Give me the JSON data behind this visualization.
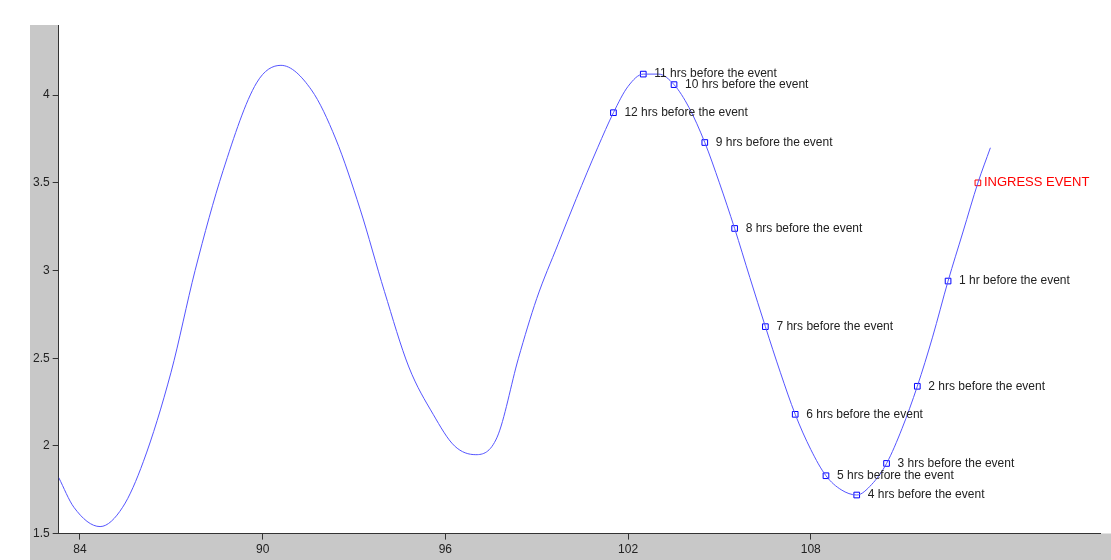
{
  "chart_data": {
    "type": "line",
    "xlim": [
      83.3,
      117.5
    ],
    "xticks": [
      84,
      90,
      96,
      102,
      108
    ],
    "ylim": [
      1.5,
      4.4
    ],
    "yticks": [
      1.5,
      2,
      2.5,
      3,
      3.5,
      4
    ],
    "grid": false,
    "legend": false,
    "line_style": "solid",
    "series": [
      {
        "marker": "none",
        "color": "#5555ff",
        "x": [
          83.3,
          83.8,
          84.66,
          85.4,
          86.08,
          86.99,
          87.78,
          88.7,
          89.8,
          90.6,
          91.6,
          92.4,
          93.2,
          94.0,
          94.8,
          95.6,
          96.3,
          97.0,
          97.7,
          98.4,
          99.0,
          99.7,
          100.3,
          101.0,
          101.52,
          102.0,
          102.5,
          103.0,
          103.51,
          104.0,
          104.52,
          105.0,
          105.5,
          106.0,
          106.51,
          107.0,
          107.49,
          108.0,
          108.5,
          109.0,
          109.51,
          110.0,
          110.49,
          111.0,
          111.5,
          112.0,
          112.51,
          113.0,
          113.49,
          113.9
        ],
        "values": [
          1.82,
          1.65,
          1.54,
          1.65,
          1.91,
          2.42,
          3.0,
          3.57,
          4.07,
          4.17,
          4.03,
          3.75,
          3.35,
          2.88,
          2.45,
          2.18,
          2.0,
          1.95,
          2.05,
          2.5,
          2.84,
          3.15,
          3.41,
          3.7,
          3.9,
          4.05,
          4.12,
          4.12,
          4.06,
          3.93,
          3.73,
          3.5,
          3.24,
          2.96,
          2.68,
          2.42,
          2.18,
          1.98,
          1.83,
          1.75,
          1.72,
          1.78,
          1.9,
          2.1,
          2.34,
          2.62,
          2.94,
          3.22,
          3.5,
          3.7
        ]
      },
      {
        "type": "scatter",
        "marker": "square",
        "color": "#0000ff",
        "x": [
          101.52,
          102.5,
          103.51,
          104.52,
          105.5,
          106.51,
          107.49,
          108.5,
          109.51,
          110.49,
          111.5,
          112.51
        ],
        "values": [
          3.9,
          4.12,
          4.06,
          3.73,
          3.24,
          2.68,
          2.18,
          1.83,
          1.72,
          1.9,
          2.34,
          2.94
        ]
      },
      {
        "type": "scatter",
        "marker": "square",
        "color": "#ff0000",
        "name": "INGRESS EVENT",
        "x": [
          113.49
        ],
        "values": [
          3.5
        ]
      }
    ],
    "annotations": [
      {
        "text": "12 hrs before the event",
        "x": 101.52,
        "y": 3.9
      },
      {
        "text": "11 hrs before the event",
        "x": 102.5,
        "y": 4.12
      },
      {
        "text": "10 hrs before the event",
        "x": 103.51,
        "y": 4.06
      },
      {
        "text": "9 hrs before the event",
        "x": 104.52,
        "y": 3.73
      },
      {
        "text": "8 hrs before the event",
        "x": 105.5,
        "y": 3.24
      },
      {
        "text": "7 hrs before the event",
        "x": 106.51,
        "y": 2.68
      },
      {
        "text": "6 hrs before the event",
        "x": 107.49,
        "y": 2.18
      },
      {
        "text": "5 hrs before the event",
        "x": 108.5,
        "y": 1.83
      },
      {
        "text": "4 hrs before the event",
        "x": 109.51,
        "y": 1.72
      },
      {
        "text": "3 hrs before the event",
        "x": 110.49,
        "y": 1.9
      },
      {
        "text": "2 hrs before the event",
        "x": 111.5,
        "y": 2.34
      },
      {
        "text": "1 hr before the event",
        "x": 112.51,
        "y": 2.94
      }
    ]
  }
}
